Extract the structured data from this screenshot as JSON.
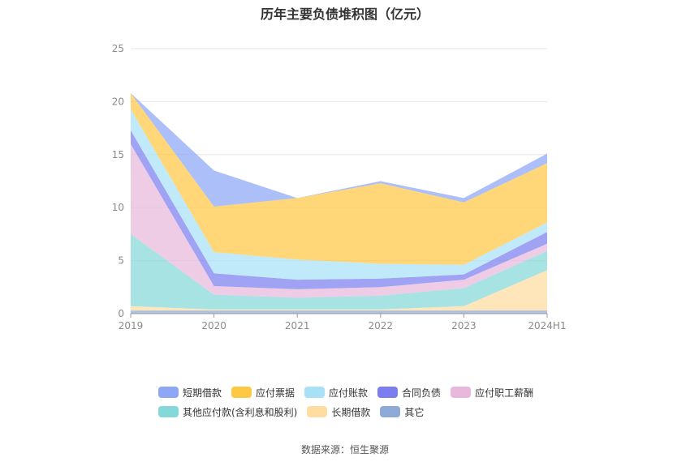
{
  "title": "历年主要负债堆积图（亿元）",
  "source": "数据来源：恒生聚源",
  "chart_data": {
    "type": "area",
    "stacked": true,
    "categories": [
      "2019",
      "2020",
      "2021",
      "2022",
      "2023",
      "2024H1"
    ],
    "ylim": [
      0,
      25
    ],
    "yticks": [
      0,
      5,
      10,
      15,
      20,
      25
    ],
    "grid": true,
    "legend_position": "bottom",
    "series": [
      {
        "name": "其它",
        "color": "#8eaad8",
        "values": [
          0.3,
          0.3,
          0.3,
          0.3,
          0.3,
          0.3
        ]
      },
      {
        "name": "长期借款",
        "color": "#ffdda0",
        "values": [
          0.4,
          0.1,
          0.1,
          0.1,
          0.4,
          3.8
        ]
      },
      {
        "name": "其他应付款(含利息和股利)",
        "color": "#85d8d8",
        "values": [
          6.8,
          1.4,
          1.1,
          1.3,
          1.7,
          1.8
        ]
      },
      {
        "name": "应付职工薪酬",
        "color": "#e8b8dc",
        "values": [
          8.5,
          0.8,
          0.8,
          0.8,
          0.8,
          0.7
        ]
      },
      {
        "name": "合同负债",
        "color": "#7c7ef0",
        "values": [
          1.3,
          1.2,
          0.9,
          0.8,
          0.5,
          1.1
        ]
      },
      {
        "name": "应付账款",
        "color": "#a8e0f8",
        "values": [
          2.0,
          2.0,
          1.9,
          1.4,
          0.9,
          0.9
        ]
      },
      {
        "name": "应付票据",
        "color": "#ffc844",
        "values": [
          1.5,
          4.3,
          5.8,
          7.6,
          5.9,
          5.6
        ]
      },
      {
        "name": "短期借款",
        "color": "#8ea6f6",
        "values": [
          0.0,
          3.4,
          0.0,
          0.2,
          0.4,
          0.9
        ]
      }
    ]
  },
  "legend": {
    "row1": [
      {
        "label": "短期借款",
        "color": "#8ea6f6"
      },
      {
        "label": "应付票据",
        "color": "#ffc844"
      },
      {
        "label": "应付账款",
        "color": "#a8e0f8"
      },
      {
        "label": "合同负债",
        "color": "#7c7ef0"
      },
      {
        "label": "应付职工薪酬",
        "color": "#e8b8dc"
      }
    ],
    "row2": [
      {
        "label": "其他应付款(含利息和股利)",
        "color": "#85d8d8"
      },
      {
        "label": "长期借款",
        "color": "#ffdda0"
      },
      {
        "label": "其它",
        "color": "#8eaad8"
      }
    ]
  }
}
